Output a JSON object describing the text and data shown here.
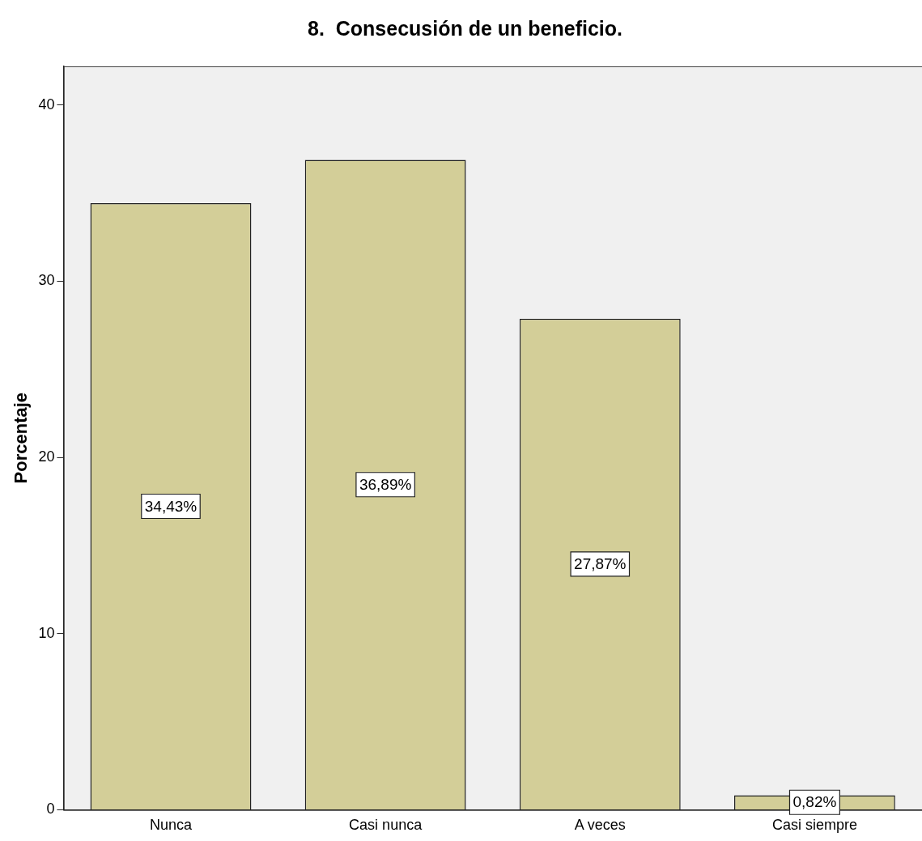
{
  "chart_data": {
    "type": "bar",
    "title": "8.  Consecusión de un beneficio.",
    "ylabel": "Porcentaje",
    "categories": [
      "Nunca",
      "Casi nunca",
      "A veces",
      "Casi siempre"
    ],
    "values": [
      34.43,
      36.89,
      27.87,
      0.82
    ],
    "value_labels": [
      "34,43%",
      "36,89%",
      "27,87%",
      "0,82%"
    ],
    "color": "#d3ce98",
    "ylim": [
      0,
      42.2
    ],
    "yticks": [
      0,
      10,
      20,
      30,
      40
    ]
  }
}
